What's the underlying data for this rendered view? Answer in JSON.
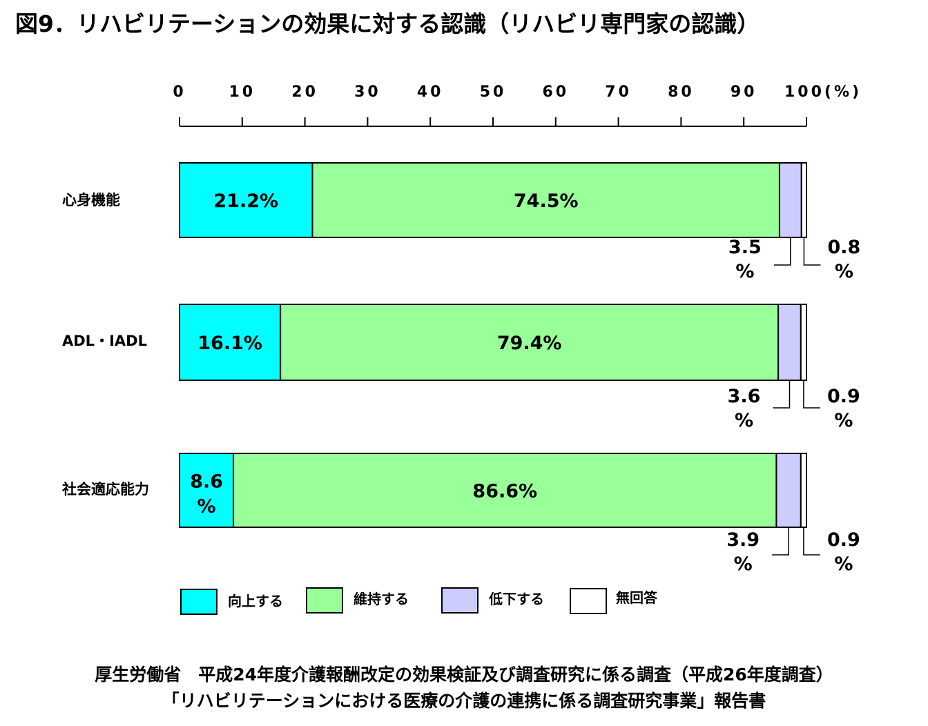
{
  "title": "図9．リハビリテーションの効果に対する認識（リハビリ専門家の認識）",
  "footer": {
    "line1": "厚生労働省　平成24年度介護報酬改定の効果検証及び調査研究に係る調査（平成26年度調査）",
    "line2": "「リハビリテーションにおける医療の介護の連携に係る調査研究事業」報告書"
  },
  "chart_data": {
    "type": "bar",
    "orientation": "horizontal",
    "stacked": true,
    "xlim": [
      0,
      100
    ],
    "tick_labels": [
      "0",
      "10",
      "20",
      "30",
      "40",
      "50",
      "60",
      "70",
      "80",
      "90",
      "100(%)"
    ],
    "tick_values": [
      0,
      10,
      20,
      30,
      40,
      50,
      60,
      70,
      80,
      90,
      100
    ],
    "categories": [
      "心身機能",
      "ADL・IADL",
      "社会適応能力"
    ],
    "series": [
      {
        "name": "向上する",
        "color": "#00FFFF",
        "values": [
          21.2,
          16.1,
          8.6
        ],
        "labels": [
          "21.2%",
          "16.1%",
          "8.6%"
        ]
      },
      {
        "name": "維持する",
        "color": "#99FF99",
        "values": [
          74.5,
          79.4,
          86.6
        ],
        "labels": [
          "74.5%",
          "79.4%",
          "86.6%"
        ]
      },
      {
        "name": "低下する",
        "color": "#CCCCFF",
        "values": [
          3.5,
          3.6,
          3.9
        ],
        "labels": [
          "3.5",
          "3.6",
          "3.9"
        ]
      },
      {
        "name": "無回答",
        "color": "#FFFFFF",
        "values": [
          0.8,
          0.9,
          0.9
        ],
        "labels": [
          "0.8",
          "0.9",
          "0.9"
        ]
      }
    ],
    "percent_sign": "%",
    "legend_position": "bottom"
  }
}
